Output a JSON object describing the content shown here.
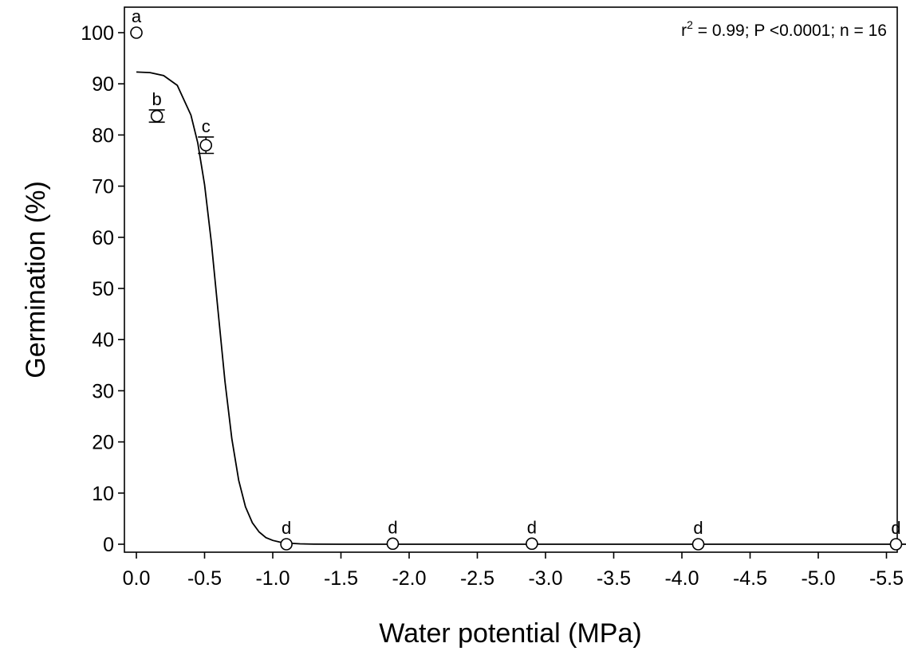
{
  "chart_data": {
    "type": "scatter",
    "xlabel": "Water potential (MPa)",
    "ylabel": "Germination (%)",
    "xlim": [
      0.0,
      -5.65
    ],
    "ylim": [
      -1.5,
      106
    ],
    "x_ticks": [
      0.0,
      -0.5,
      -1.0,
      -1.5,
      -2.0,
      -2.5,
      -3.0,
      -3.5,
      -4.0,
      -4.5,
      -5.0,
      -5.5
    ],
    "x_tick_labels": [
      "0.0",
      "-0.5",
      "-1.0",
      "-1.5",
      "-2.0",
      "-2.5",
      "-3.0",
      "-3.5",
      "-4.0",
      "-4.5",
      "-5.0",
      "-5.5"
    ],
    "y_ticks": [
      0,
      10,
      20,
      30,
      40,
      50,
      60,
      70,
      80,
      90,
      100
    ],
    "y_tick_labels": [
      "0",
      "10",
      "20",
      "30",
      "40",
      "50",
      "60",
      "70",
      "80",
      "90",
      "100"
    ],
    "points": [
      {
        "x": 0.0,
        "y": 100.0,
        "err": 0.0,
        "letter": "a"
      },
      {
        "x": -0.15,
        "y": 83.7,
        "err": 1.2,
        "letter": "b"
      },
      {
        "x": -0.51,
        "y": 78.0,
        "err": 1.6,
        "letter": "c"
      },
      {
        "x": -1.1,
        "y": 0.0,
        "err": 0.0,
        "letter": "d"
      },
      {
        "x": -1.88,
        "y": 0.1,
        "err": 0.0,
        "letter": "d"
      },
      {
        "x": -2.9,
        "y": 0.1,
        "err": 0.0,
        "letter": "d"
      },
      {
        "x": -4.12,
        "y": 0.0,
        "err": 0.0,
        "letter": "d"
      },
      {
        "x": -5.57,
        "y": 0.0,
        "err": 0.0,
        "letter": "d"
      }
    ],
    "fit_curve": {
      "x": [
        0.0,
        -0.1,
        -0.2,
        -0.3,
        -0.4,
        -0.45,
        -0.5,
        -0.55,
        -0.6,
        -0.65,
        -0.7,
        -0.75,
        -0.8,
        -0.85,
        -0.9,
        -0.95,
        -1.0,
        -1.05,
        -1.1,
        -1.2,
        -1.3,
        -1.5,
        -2.0,
        -3.0,
        -4.0,
        -5.0,
        -5.65
      ],
      "y": [
        92.3,
        92.2,
        91.6,
        89.7,
        83.9,
        78.5,
        70.3,
        58.9,
        45.3,
        31.8,
        20.6,
        12.5,
        7.3,
        4.2,
        2.4,
        1.3,
        0.75,
        0.42,
        0.24,
        0.08,
        0.02,
        0.0,
        0.0,
        0.0,
        0.0,
        0.0,
        0.0
      ]
    },
    "annotation": {
      "prefix": "r",
      "superscript": "2",
      "rest": " = 0.99; P <0.0001; n = 16"
    },
    "grid": false,
    "legend": "none"
  }
}
